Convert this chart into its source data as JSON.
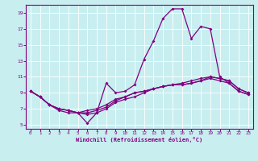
{
  "title": "",
  "xlabel": "Windchill (Refroidissement éolien,°C)",
  "background_color": "#c8eef0",
  "grid_color": "#ffffff",
  "line_color": "#800080",
  "xmin": 0,
  "xmax": 23,
  "ymin": 5,
  "ymax": 19,
  "xticks": [
    0,
    1,
    2,
    3,
    4,
    5,
    6,
    7,
    8,
    9,
    10,
    11,
    12,
    13,
    14,
    15,
    16,
    17,
    18,
    19,
    20,
    21,
    22,
    23
  ],
  "yticks": [
    5,
    7,
    9,
    11,
    13,
    15,
    17,
    19
  ],
  "line1_x": [
    0,
    1,
    2,
    3,
    4,
    5,
    6,
    7,
    8,
    9,
    10,
    11,
    12,
    13,
    14,
    15,
    16,
    17,
    18,
    19,
    20,
    21,
    22,
    23
  ],
  "line1_y": [
    9.2,
    8.5,
    7.5,
    6.8,
    6.5,
    6.5,
    5.2,
    6.5,
    10.2,
    9.0,
    9.2,
    10.0,
    13.2,
    15.5,
    18.3,
    19.5,
    19.5,
    15.8,
    17.3,
    17.0,
    11.0,
    10.2,
    9.2,
    8.8
  ],
  "line2_x": [
    0,
    1,
    2,
    3,
    4,
    5,
    6,
    7,
    8,
    9,
    10,
    11,
    12,
    13,
    14,
    15,
    16,
    17,
    18,
    19,
    20,
    21,
    22,
    23
  ],
  "line2_y": [
    9.2,
    8.5,
    7.5,
    7.0,
    6.8,
    6.5,
    6.3,
    6.5,
    7.0,
    7.8,
    8.2,
    8.5,
    9.0,
    9.5,
    9.8,
    10.0,
    10.0,
    10.2,
    10.5,
    10.8,
    10.5,
    10.2,
    9.2,
    8.8
  ],
  "line3_x": [
    0,
    1,
    2,
    3,
    4,
    5,
    6,
    7,
    8,
    9,
    10,
    11,
    12,
    13,
    14,
    15,
    16,
    17,
    18,
    19,
    20,
    21,
    22,
    23
  ],
  "line3_y": [
    9.2,
    8.5,
    7.5,
    7.0,
    6.8,
    6.5,
    6.5,
    6.8,
    7.2,
    8.0,
    8.5,
    9.0,
    9.2,
    9.5,
    9.8,
    10.0,
    10.0,
    10.2,
    10.5,
    11.0,
    10.8,
    10.5,
    9.5,
    9.0
  ],
  "line4_x": [
    0,
    1,
    2,
    3,
    4,
    5,
    6,
    7,
    8,
    9,
    10,
    11,
    12,
    13,
    14,
    15,
    16,
    17,
    18,
    19,
    20,
    21,
    22,
    23
  ],
  "line4_y": [
    9.2,
    8.5,
    7.5,
    7.0,
    6.8,
    6.5,
    6.8,
    7.0,
    7.5,
    8.2,
    8.5,
    9.0,
    9.2,
    9.5,
    9.8,
    10.0,
    10.2,
    10.5,
    10.8,
    11.0,
    10.8,
    10.5,
    9.5,
    9.0
  ]
}
